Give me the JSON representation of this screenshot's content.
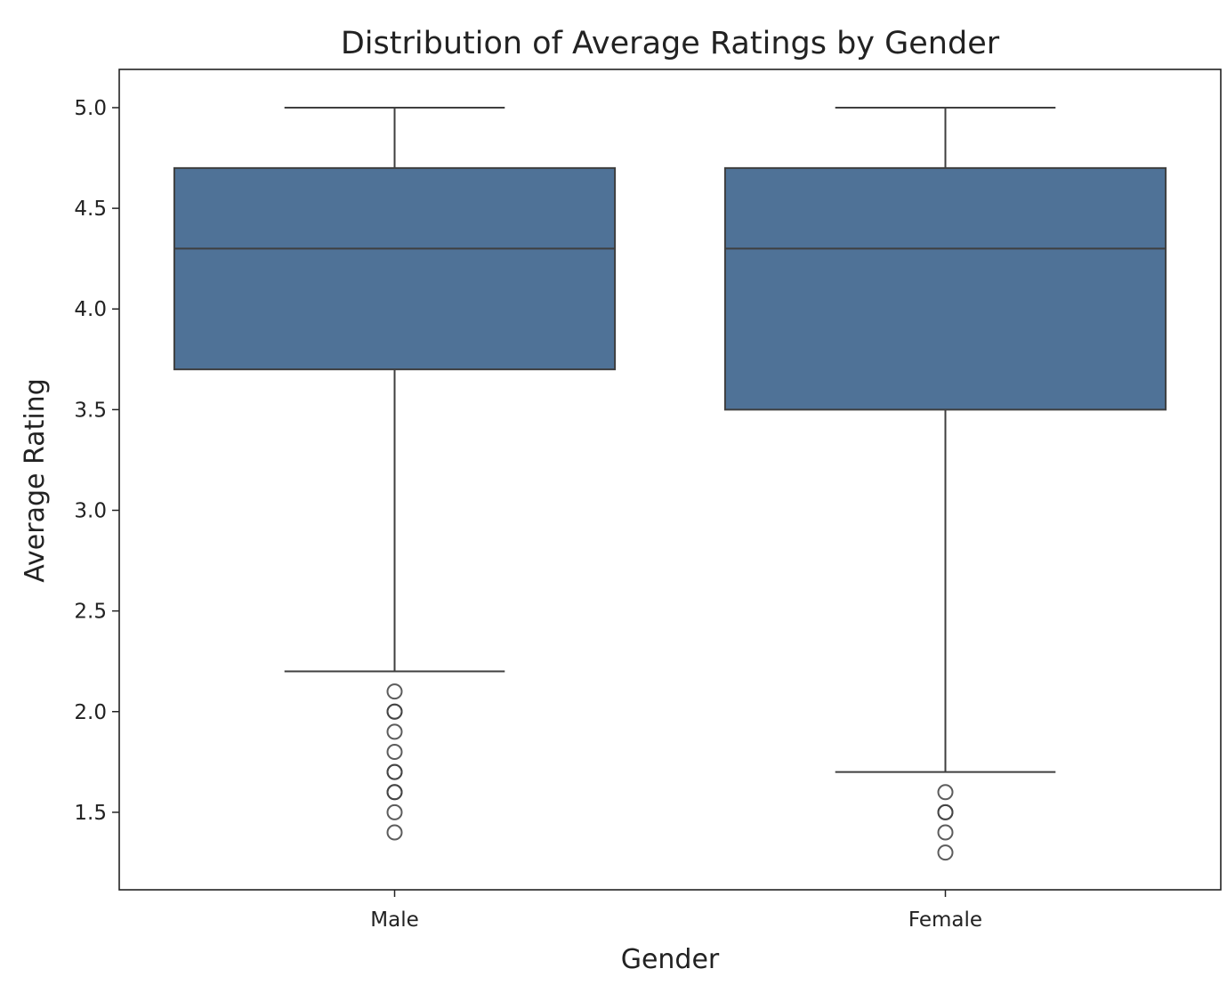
{
  "chart_data": {
    "type": "box",
    "title": "Distribution of Average Ratings by Gender",
    "xlabel": "Gender",
    "ylabel": "Average Rating",
    "categories": [
      "Male",
      "Female"
    ],
    "ylim": [
      1.115,
      5.19
    ],
    "yticks": [
      "1.5",
      "2.0",
      "2.5",
      "3.0",
      "3.5",
      "4.0",
      "4.5",
      "5.0"
    ],
    "box_color": "#4f7297",
    "edge_color": "#3f3f3f",
    "series": [
      {
        "name": "Male",
        "whisker_low": 2.2,
        "q1": 3.7,
        "median": 4.3,
        "q3": 4.7,
        "whisker_high": 5.0,
        "outliers": [
          2.1,
          2.0,
          2.0,
          1.9,
          1.8,
          1.7,
          1.7,
          1.6,
          1.6,
          1.5,
          1.4
        ]
      },
      {
        "name": "Female",
        "whisker_low": 1.7,
        "q1": 3.5,
        "median": 4.3,
        "q3": 4.7,
        "whisker_high": 5.0,
        "outliers": [
          1.6,
          1.5,
          1.5,
          1.4,
          1.3
        ]
      }
    ]
  }
}
